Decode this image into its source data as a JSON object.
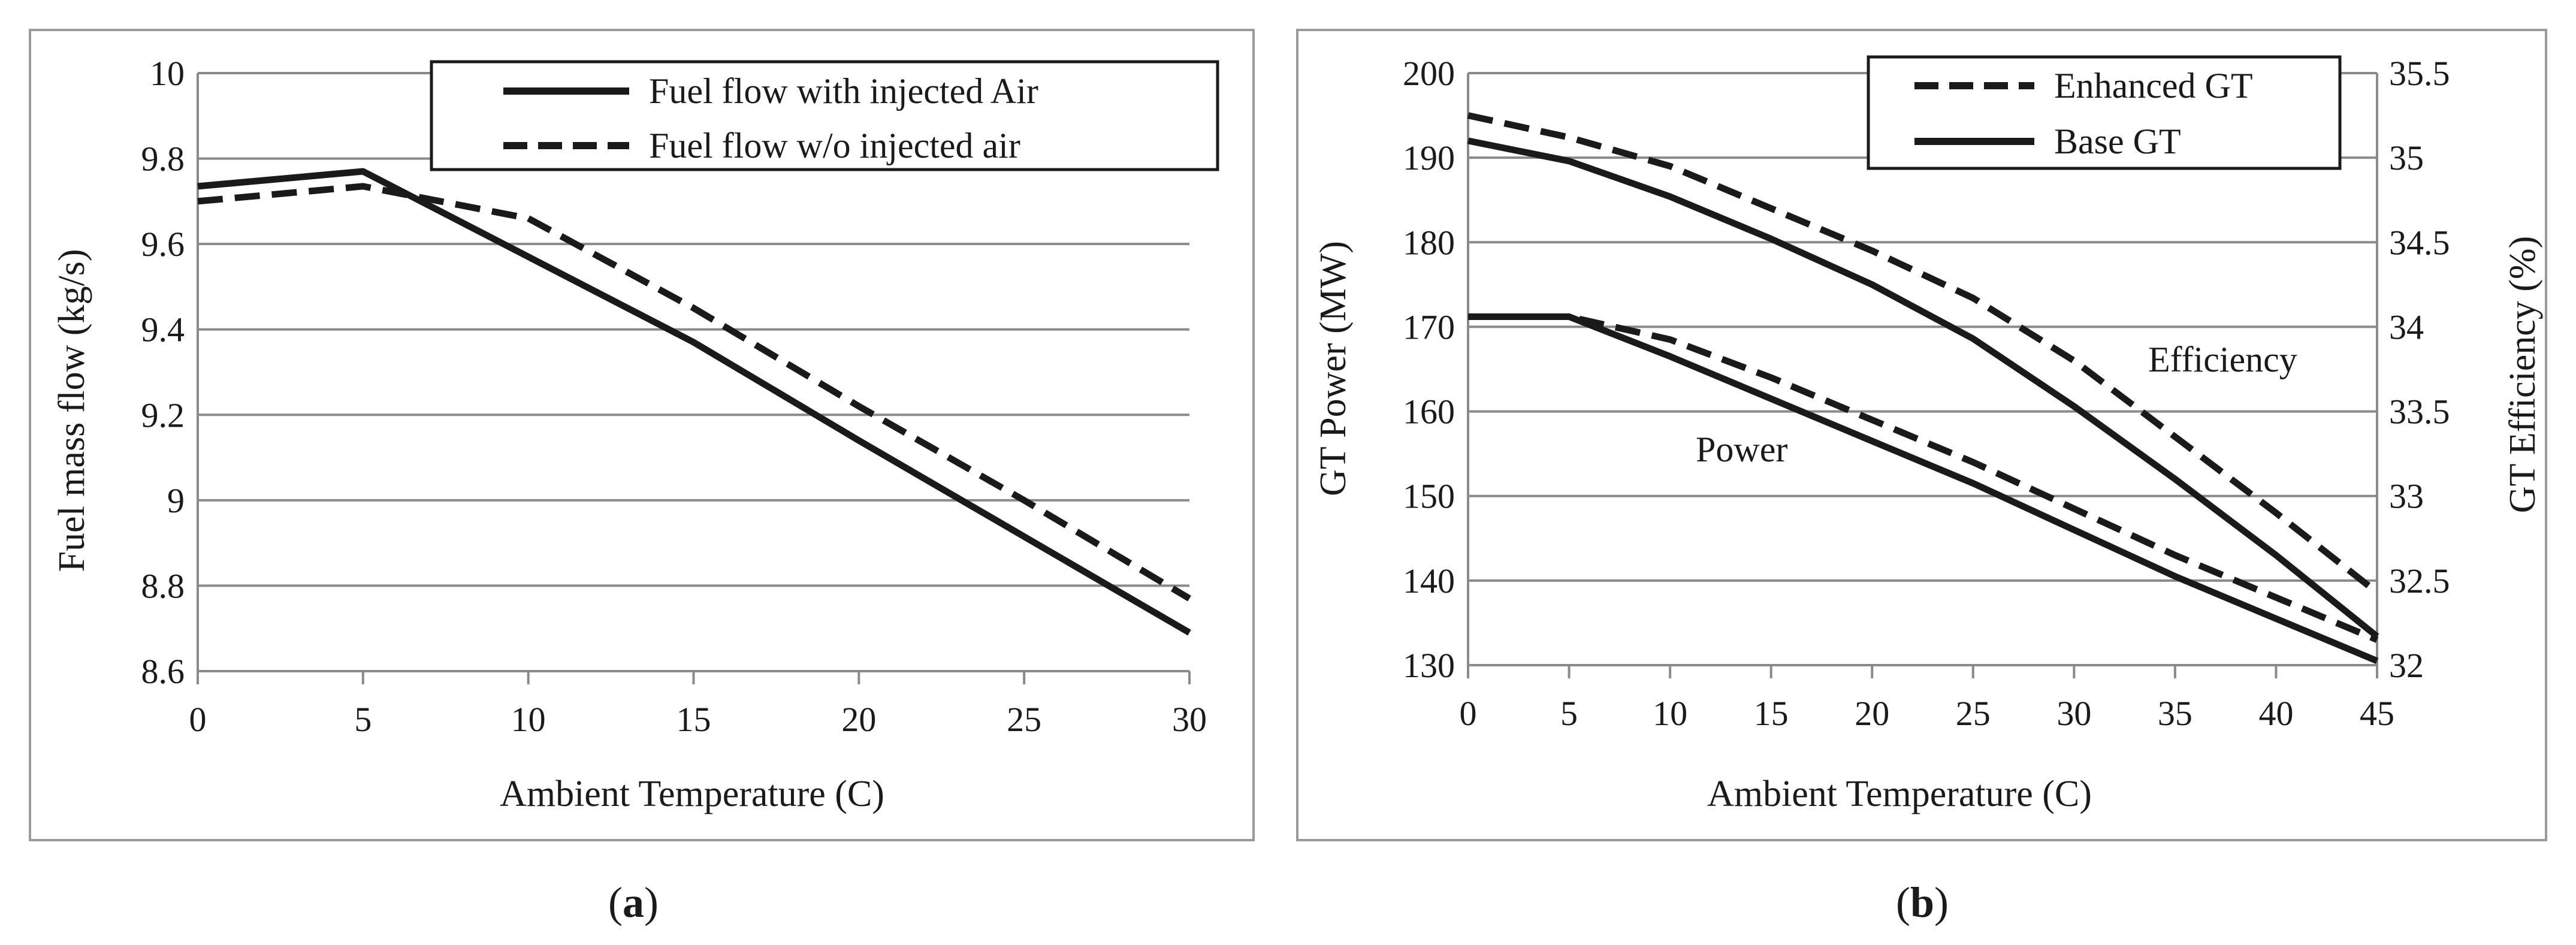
{
  "chart_data": [
    {
      "type": "line",
      "caption": "(a)",
      "caption_letter": "a",
      "xlabel": "Ambient Temperature (C)",
      "ylabel": "Fuel mass flow (kg/s)",
      "xlim": [
        0,
        30
      ],
      "ylim": [
        8.6,
        10
      ],
      "x_ticks": [
        "0",
        "5",
        "10",
        "15",
        "20",
        "25",
        "30"
      ],
      "y_ticks": [
        "8.6",
        "8.8",
        "9",
        "9.2",
        "9.4",
        "9.6",
        "9.8",
        "10"
      ],
      "grid": "horizontal",
      "legend_position": "top-right",
      "series": [
        {
          "name": "Fuel flow with injected Air",
          "style": "solid",
          "x": [
            0,
            5,
            10,
            15,
            20,
            25,
            30
          ],
          "y": [
            9.735,
            9.77,
            9.57,
            9.37,
            9.14,
            8.915,
            8.69
          ]
        },
        {
          "name": "Fuel flow w/o injected air",
          "style": "dashed",
          "x": [
            0,
            5,
            10,
            15,
            20,
            25,
            30
          ],
          "y": [
            9.7,
            9.735,
            9.66,
            9.45,
            9.22,
            9.0,
            8.77
          ]
        }
      ]
    },
    {
      "type": "line",
      "caption": "(b)",
      "caption_letter": "b",
      "xlabel": "Ambient Temperature (C)",
      "ylabel_left": "GT Power (MW)",
      "ylabel_right": "GT Efficiency (%)",
      "xlim": [
        0,
        45
      ],
      "ylim_left": [
        130,
        200
      ],
      "ylim_right": [
        32,
        35.5
      ],
      "x_ticks": [
        "0",
        "5",
        "10",
        "15",
        "20",
        "25",
        "30",
        "35",
        "40",
        "45"
      ],
      "y_ticks_left": [
        "130",
        "140",
        "150",
        "160",
        "170",
        "180",
        "190",
        "200"
      ],
      "y_ticks_right": [
        "32",
        "32.5",
        "33",
        "33.5",
        "34",
        "34.5",
        "35",
        "35.5"
      ],
      "grid": "horizontal",
      "legend_position": "top-center",
      "legend": [
        {
          "name": "Enhanced GT",
          "style": "dashed"
        },
        {
          "name": "Base GT",
          "style": "solid"
        }
      ],
      "annotations": [
        "Efficiency",
        "Power"
      ],
      "series": [
        {
          "name": "Enhanced GT Efficiency",
          "style": "dashed",
          "axis": "right",
          "x": [
            0,
            5,
            10,
            15,
            20,
            25,
            30,
            35,
            40,
            45
          ],
          "y": [
            35.25,
            35.12,
            34.95,
            34.7,
            34.45,
            34.17,
            33.8,
            33.35,
            32.9,
            32.43
          ]
        },
        {
          "name": "Base GT Efficiency",
          "style": "solid",
          "axis": "right",
          "x": [
            0,
            5,
            10,
            15,
            20,
            25,
            30,
            35,
            40,
            45
          ],
          "y": [
            35.1,
            34.98,
            34.77,
            34.52,
            34.25,
            33.93,
            33.53,
            33.1,
            32.65,
            32.17
          ]
        },
        {
          "name": "Enhanced GT Power",
          "style": "dashed",
          "axis": "left",
          "x": [
            0,
            5,
            10,
            15,
            20,
            25,
            30,
            35,
            40,
            45
          ],
          "y": [
            171.2,
            171.2,
            168.5,
            164.0,
            159.0,
            154.0,
            148.5,
            143.0,
            138.0,
            133.0
          ]
        },
        {
          "name": "Base GT Power",
          "style": "solid",
          "axis": "left",
          "x": [
            0,
            5,
            10,
            15,
            20,
            25,
            30,
            35,
            40,
            45
          ],
          "y": [
            171.2,
            171.2,
            166.5,
            161.5,
            156.5,
            151.5,
            146.0,
            140.5,
            135.5,
            130.5
          ]
        }
      ]
    }
  ]
}
